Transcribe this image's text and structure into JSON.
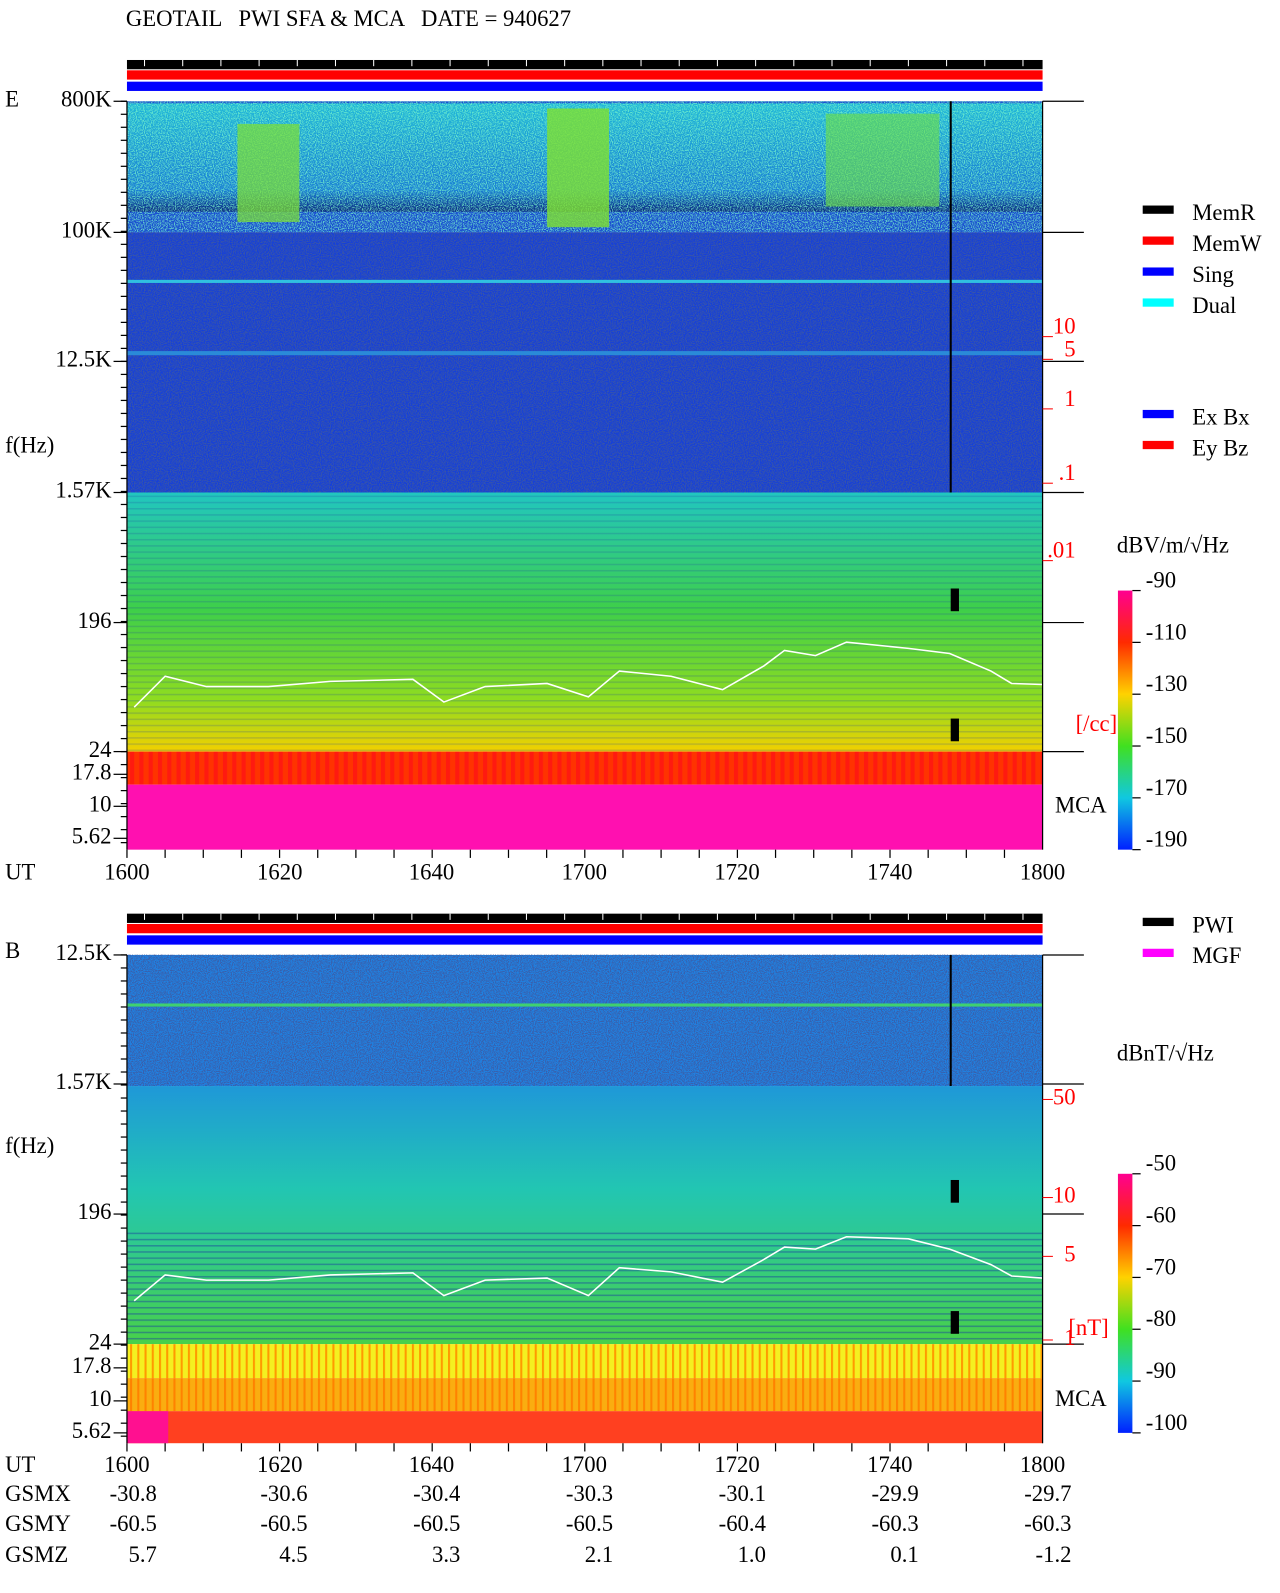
{
  "header": {
    "title": "GEOTAIL   PWI SFA & MCA   DATE = 940627"
  },
  "top_panel": {
    "component": "E",
    "freq_label": "f(Hz)",
    "freq_ticks": [
      "800K",
      "100K",
      "12.5K",
      "1.57K",
      "196",
      "24",
      "17.8",
      "10",
      "5.62"
    ],
    "density_ticks": [
      "10",
      "5",
      "1",
      ".1",
      ".01"
    ],
    "density_unit": "[/cc]",
    "mca_label": "MCA",
    "legend": [
      "MemR",
      "MemW",
      "Sing",
      "Dual"
    ],
    "legend_axes": [
      "Ex Bx",
      "Ey Bz"
    ],
    "unit": "dBV/m/√Hz",
    "colorbar_ticks": [
      "-90",
      "-110",
      "-130",
      "-150",
      "-170",
      "-190"
    ]
  },
  "bottom_panel": {
    "component": "B",
    "freq_label": "f(Hz)",
    "freq_ticks": [
      "12.5K",
      "1.57K",
      "196",
      "24",
      "17.8",
      "10",
      "5.62"
    ],
    "field_ticks": [
      "50",
      "10",
      "5",
      "1"
    ],
    "field_unit": "[nT]",
    "mca_label": "MCA",
    "legend": [
      "PWI",
      "MGF"
    ],
    "unit": "dBnT/√Hz",
    "colorbar_ticks": [
      "-50",
      "-60",
      "-70",
      "-80",
      "-90",
      "-100"
    ]
  },
  "time_axis": {
    "label": "UT",
    "ticks": [
      "1600",
      "1620",
      "1640",
      "1700",
      "1720",
      "1740",
      "1800"
    ]
  },
  "orbit": [
    {
      "label": "GSMX",
      "values": [
        "-30.8",
        "-30.6",
        "-30.4",
        "-30.3",
        "-30.1",
        "-29.9",
        "-29.7"
      ]
    },
    {
      "label": "GSMY",
      "values": [
        "-60.5",
        "-60.5",
        "-60.5",
        "-60.5",
        "-60.4",
        "-60.3",
        "-60.3"
      ]
    },
    {
      "label": "GSMZ",
      "values": [
        "5.7",
        "4.5",
        "3.3",
        "2.1",
        "1.0",
        "0.1",
        "-1.2"
      ]
    }
  ]
}
